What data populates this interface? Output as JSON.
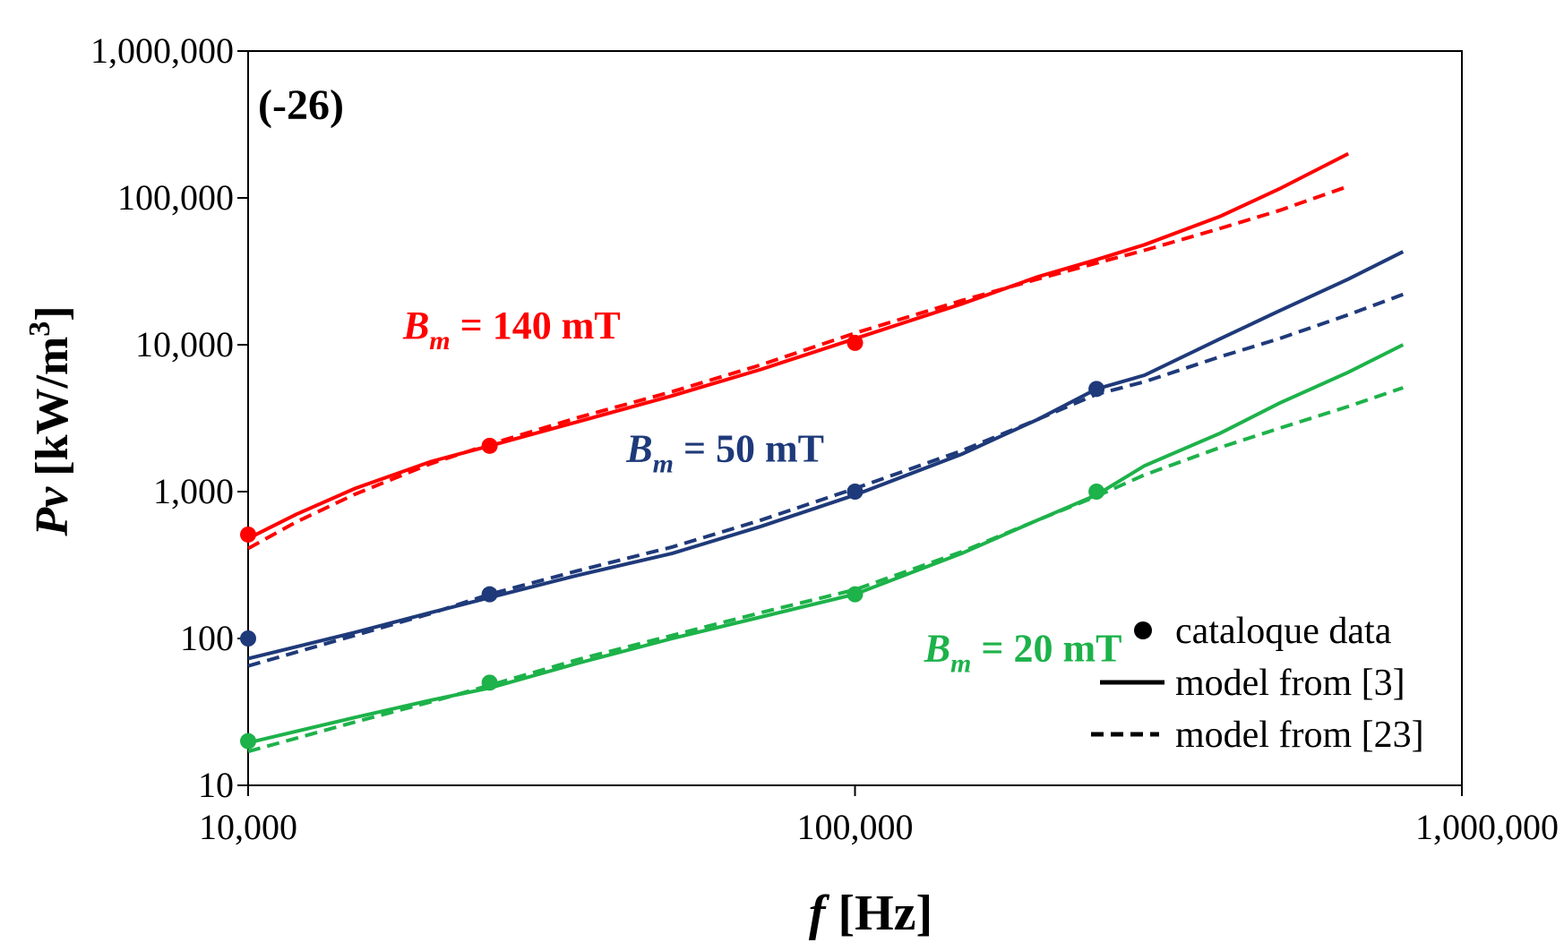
{
  "chart_data": {
    "type": "line",
    "panel_label": "(-26)",
    "xscale": "log",
    "yscale": "log",
    "xlim": [
      10000,
      1000000
    ],
    "ylim": [
      10,
      1000000
    ],
    "xlabel": {
      "italic": "f",
      "rest": "[Hz]"
    },
    "ylabel": {
      "italic": "Pv",
      "rest": "[kW/m",
      "sup": "3",
      "end": "]"
    },
    "x_tick_labels": [
      {
        "value": 10000,
        "label": "10,000"
      },
      {
        "value": 100000,
        "label": "100,000"
      },
      {
        "value": 1000000,
        "label": "1,000,000"
      }
    ],
    "y_tick_labels": [
      {
        "value": 10,
        "label": "10"
      },
      {
        "value": 100,
        "label": "100"
      },
      {
        "value": 1000,
        "label": "1,000"
      },
      {
        "value": 10000,
        "label": "10,000"
      },
      {
        "value": 100000,
        "label": "100,000"
      },
      {
        "value": 1000000,
        "label": "1,000,000"
      }
    ],
    "legend": {
      "position": "bottom-right",
      "entries": [
        {
          "style": "marker",
          "label": "cataloque data"
        },
        {
          "style": "solid",
          "label": "model from [3]"
        },
        {
          "style": "dashed",
          "label": "model from [23]"
        }
      ]
    },
    "series": [
      {
        "name": "Bm = 140 mT",
        "label_main": "B",
        "label_sub": "m",
        "label_rest": " = 140 mT",
        "color": "#ff0000",
        "label_anchor": [
          18000,
          11000
        ],
        "catalogue": {
          "x": [
            10000,
            25000,
            100000
          ],
          "y": [
            510,
            2050,
            10300
          ]
        },
        "model_3": {
          "x": [
            10000,
            12000,
            15000,
            20000,
            25000,
            35000,
            50000,
            70000,
            100000,
            150000,
            200000,
            250000,
            300000,
            400000,
            500000,
            650000
          ],
          "y": [
            480,
            700,
            1050,
            1600,
            2050,
            3000,
            4500,
            6800,
            11000,
            19000,
            29000,
            38000,
            48000,
            75000,
            115000,
            200000
          ]
        },
        "model_23": {
          "x": [
            10000,
            12000,
            15000,
            20000,
            25000,
            35000,
            50000,
            70000,
            100000,
            150000,
            200000,
            250000,
            300000,
            400000,
            500000,
            650000
          ],
          "y": [
            410,
            620,
            960,
            1550,
            2100,
            3200,
            4800,
            7300,
            12000,
            20000,
            28000,
            36000,
            44000,
            62000,
            82000,
            120000
          ]
        }
      },
      {
        "name": "Bm = 50 mT",
        "label_main": "B",
        "label_sub": "m",
        "label_rest": " = 50 mT",
        "color": "#1f3a7a",
        "label_anchor": [
          42000,
          1600
        ],
        "catalogue": {
          "x": [
            10000,
            25000,
            100000,
            250000
          ],
          "y": [
            100,
            200,
            1000,
            5000
          ]
        },
        "model_3": {
          "x": [
            10000,
            15000,
            20000,
            25000,
            35000,
            50000,
            70000,
            100000,
            150000,
            200000,
            250000,
            300000,
            400000,
            500000,
            650000,
            800000
          ],
          "y": [
            73,
            110,
            150,
            190,
            270,
            380,
            580,
            950,
            1800,
            3100,
            5000,
            6200,
            11000,
            17000,
            28000,
            43000
          ]
        },
        "model_23": {
          "x": [
            10000,
            15000,
            20000,
            25000,
            35000,
            50000,
            70000,
            100000,
            150000,
            200000,
            250000,
            300000,
            400000,
            500000,
            650000,
            800000
          ],
          "y": [
            65,
            105,
            148,
            200,
            290,
            420,
            640,
            1050,
            1900,
            3100,
            4600,
            5600,
            8300,
            11000,
            16000,
            22000
          ]
        }
      },
      {
        "name": "Bm = 20 mT",
        "label_main": "B",
        "label_sub": "m",
        "label_rest": " = 20 mT",
        "color": "#1db24a",
        "label_anchor": [
          130000,
          70
        ],
        "catalogue": {
          "x": [
            10000,
            25000,
            100000,
            250000
          ],
          "y": [
            20,
            50,
            200,
            1000
          ]
        },
        "model_3": {
          "x": [
            10000,
            15000,
            20000,
            25000,
            35000,
            50000,
            70000,
            100000,
            150000,
            200000,
            250000,
            300000,
            400000,
            500000,
            650000,
            800000
          ],
          "y": [
            19.5,
            29,
            38,
            46,
            68,
            100,
            140,
            200,
            380,
            640,
            950,
            1500,
            2500,
            4000,
            6500,
            10000
          ]
        },
        "model_23": {
          "x": [
            10000,
            15000,
            20000,
            25000,
            35000,
            50000,
            70000,
            100000,
            150000,
            200000,
            250000,
            300000,
            400000,
            500000,
            650000,
            800000
          ],
          "y": [
            17,
            27,
            37,
            48,
            72,
            105,
            150,
            215,
            390,
            640,
            930,
            1300,
            2000,
            2700,
            3800,
            5100
          ]
        }
      }
    ]
  }
}
